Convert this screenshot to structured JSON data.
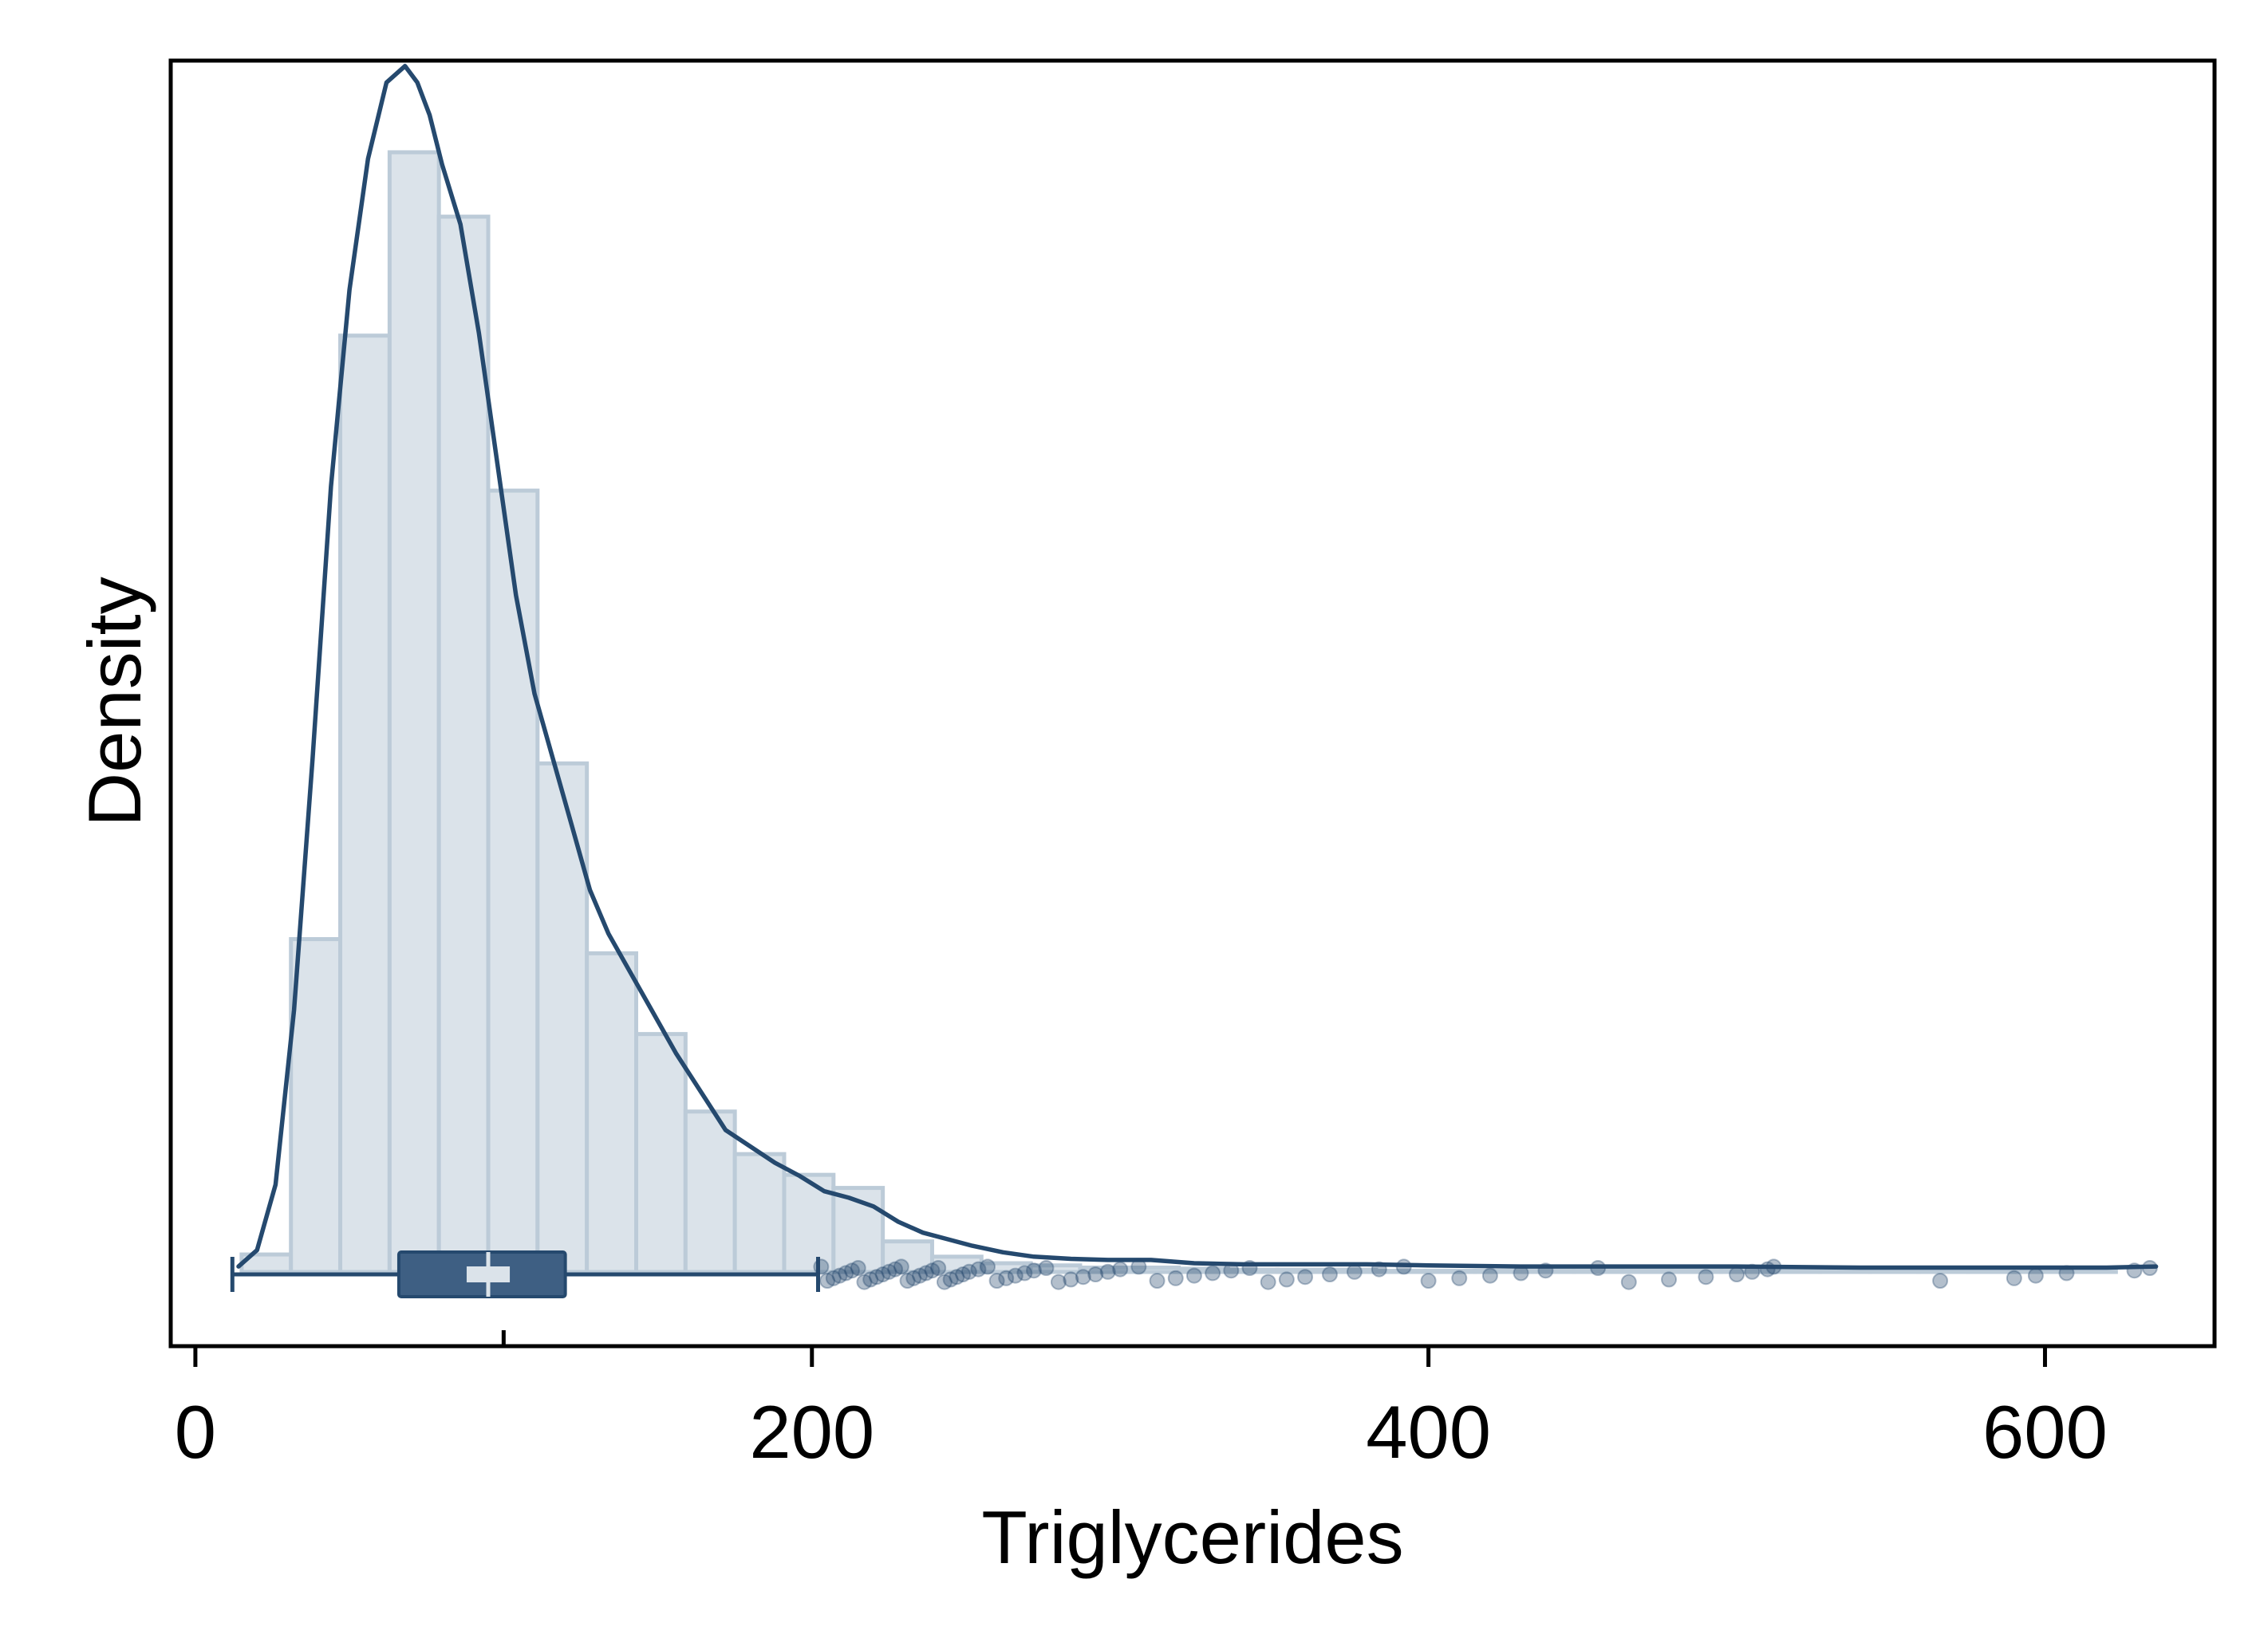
{
  "colors": {
    "plot_background": "#dfe5ec",
    "bar_fill": "#dbe3ea",
    "bar_edge": "#bccbd8",
    "density_line": "#25496e",
    "box_fill": "#3e5f83",
    "box_line": "#25496e",
    "outlier_fill": "#25496e",
    "frame": "#000000"
  },
  "chart_data": {
    "type": "bar",
    "subtype": "histogram with kernel density curve and horizontal box plot",
    "title": "",
    "xlabel": "Triglycerides",
    "ylabel": "Density",
    "xlim": [
      -8,
      655
    ],
    "ylim": [
      -0.00068,
      0.0111
    ],
    "x_ticks": [
      0,
      200,
      400,
      600
    ],
    "x_tick_labels": [
      "0",
      "200",
      "400",
      "600"
    ],
    "y_tick_labels_shown": false,
    "grid": false,
    "legend": "none",
    "histogram": {
      "bin_width": 16,
      "bin_edges": [
        15,
        31,
        47,
        63,
        79,
        95,
        111,
        127,
        143,
        159,
        175,
        191,
        207,
        223,
        239,
        255,
        271,
        287,
        303,
        319,
        335,
        351,
        367,
        383,
        399,
        415,
        431,
        447,
        463,
        479,
        495,
        511,
        527,
        543,
        559,
        575,
        591,
        607,
        623
      ],
      "densities": [
        0.00016,
        0.00305,
        0.00858,
        0.01026,
        0.00967,
        0.00716,
        0.00466,
        0.00292,
        0.00218,
        0.00147,
        0.00108,
        0.00089,
        0.00077,
        0.00028,
        0.00014,
        8e-05,
        6e-05,
        4e-05,
        4e-05,
        3e-05,
        2e-05,
        2e-05,
        2e-05,
        1e-05,
        1e-05,
        1e-05,
        1e-05,
        1e-05,
        1e-05,
        1e-05,
        1e-05,
        1e-05,
        1e-05,
        1e-05,
        1e-05,
        1e-05,
        1e-05,
        1e-05
      ]
    },
    "density_curve": {
      "x": [
        14,
        20,
        26,
        32,
        38,
        44,
        50,
        56,
        62,
        68,
        72,
        76,
        80,
        86,
        92,
        98,
        104,
        110,
        116,
        122,
        128,
        134,
        140,
        148,
        156,
        164,
        172,
        180,
        188,
        196,
        204,
        212,
        220,
        228,
        236,
        244,
        252,
        262,
        272,
        284,
        296,
        310,
        324,
        340,
        360,
        380,
        400,
        430,
        460,
        500,
        540,
        580,
        620,
        636
      ],
      "y": [
        5e-05,
        0.0002,
        0.0008,
        0.0024,
        0.0047,
        0.0072,
        0.009,
        0.0102,
        0.0109,
        0.01105,
        0.0109,
        0.0106,
        0.01015,
        0.0096,
        0.0086,
        0.0074,
        0.0062,
        0.0053,
        0.0047,
        0.0041,
        0.0035,
        0.0031,
        0.0028,
        0.0024,
        0.002,
        0.00165,
        0.0013,
        0.00115,
        0.001,
        0.00088,
        0.00074,
        0.00068,
        0.0006,
        0.00046,
        0.00036,
        0.0003,
        0.00024,
        0.00018,
        0.00014,
        0.00012,
        0.00011,
        0.00011,
        8e-05,
        7e-05,
        7e-05,
        7e-05,
        6e-05,
        5e-05,
        5e-05,
        5e-05,
        4e-05,
        4e-05,
        4e-05,
        5e-05
      ]
    },
    "boxplot": {
      "whisker_low": 12,
      "q1": 66,
      "median": 95,
      "q3": 120,
      "whisker_high": 202,
      "notch_low": 88,
      "notch_high": 102
    },
    "outliers": [
      203,
      205,
      207,
      209,
      211,
      213,
      215,
      217,
      219,
      221,
      223,
      225,
      227,
      229,
      231,
      233,
      235,
      237,
      239,
      241,
      243,
      245,
      247,
      249,
      251,
      254,
      257,
      260,
      263,
      266,
      269,
      272,
      276,
      280,
      284,
      288,
      292,
      296,
      300,
      306,
      312,
      318,
      324,
      330,
      336,
      342,
      348,
      354,
      360,
      368,
      376,
      384,
      392,
      400,
      410,
      420,
      430,
      438,
      455,
      465,
      478,
      490,
      500,
      505,
      510,
      512,
      566,
      590,
      597,
      607,
      629,
      634
    ]
  }
}
